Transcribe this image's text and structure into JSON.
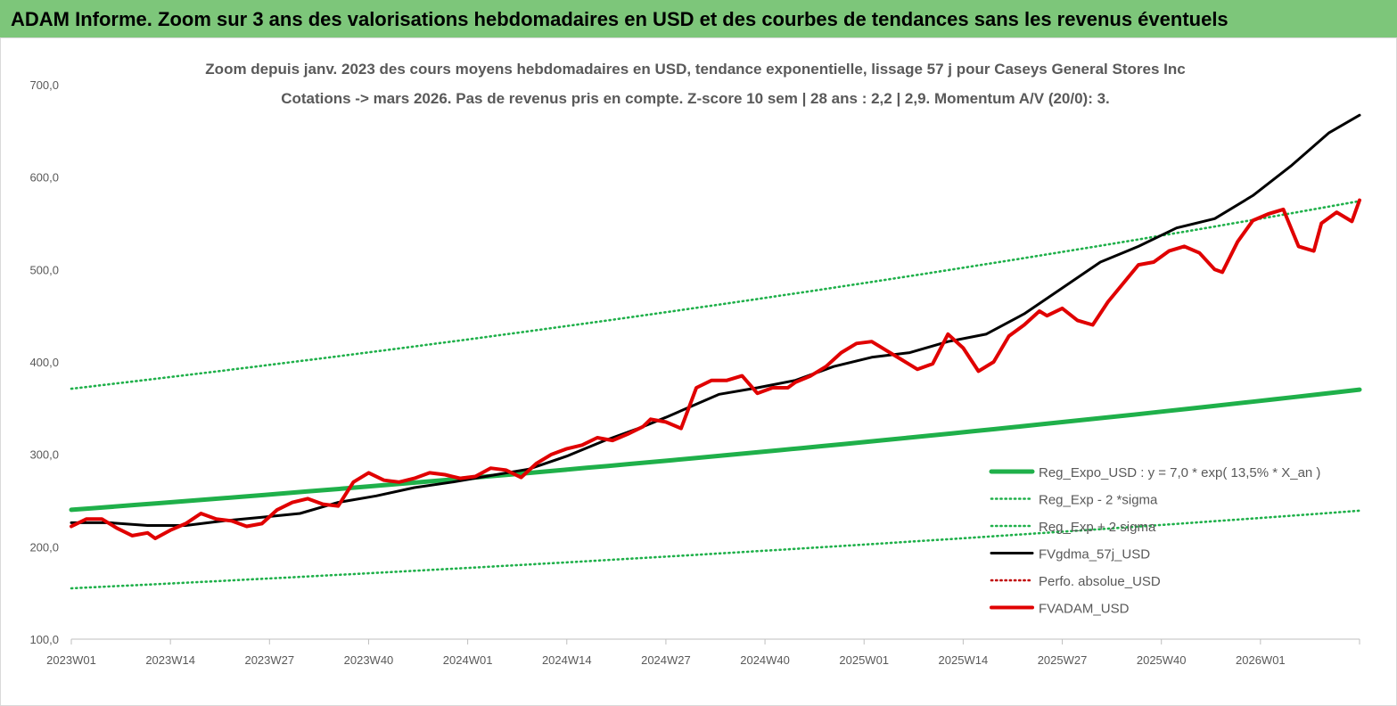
{
  "banner": {
    "title": "ADAM Informe. Zoom sur 3 ans des valorisations hebdomadaires en USD et des courbes de tendances sans les revenus éventuels"
  },
  "colors": {
    "banner_bg": "#7dc67a",
    "trend_green": "#1fb04a",
    "price_red": "#e00000",
    "smooth_black": "#000000",
    "perf_red": "#c00000",
    "text_grey": "#595959"
  },
  "chart_data": {
    "type": "line",
    "title": "Zoom depuis janv. 2023 des cours moyens hebdomadaires en USD, tendance exponentielle, lissage 57 j pour Caseys General Stores Inc",
    "subtitle": "Cotations -> mars 2026. Pas de revenus pris en compte. Z-score 10 sem | 28 ans : 2,2 | 2,9. Momentum A/V (20/0): 3.",
    "ylim": [
      100,
      700
    ],
    "yticks": [
      "100,0",
      "200,0",
      "300,0",
      "400,0",
      "500,0",
      "600,0",
      "700,0"
    ],
    "xticks": [
      "2023W01",
      "2023W14",
      "2023W27",
      "2023W40",
      "2024W01",
      "2024W14",
      "2024W27",
      "2024W40",
      "2025W01",
      "2025W14",
      "2025W27",
      "2025W40",
      "2026W01"
    ],
    "week_range": [
      0,
      169
    ],
    "legend_position": "right",
    "series": [
      {
        "name": "Reg_Expo_USD : y = 7,0 * exp( 13,5% * X_an )",
        "style": "solid-thick",
        "color": "#1fb04a",
        "x": [
          0,
          169
        ],
        "y": [
          240,
          370
        ],
        "growth": "exponential"
      },
      {
        "name": "Reg_Exp - 2 *sigma",
        "style": "dotted",
        "color": "#1fb04a",
        "x": [
          0,
          169
        ],
        "y": [
          155,
          239
        ],
        "growth": "exponential"
      },
      {
        "name": "Reg_Exp + 2 sigma",
        "style": "dotted",
        "color": "#1fb04a",
        "x": [
          0,
          169
        ],
        "y": [
          371,
          574
        ],
        "growth": "exponential"
      },
      {
        "name": "FVgdma_57j_USD",
        "style": "solid",
        "color": "#000000",
        "x": [
          0,
          5,
          10,
          15,
          20,
          25,
          30,
          35,
          40,
          45,
          50,
          55,
          60,
          65,
          70,
          75,
          78,
          85,
          90,
          95,
          100,
          105,
          110,
          115,
          120,
          125,
          130,
          135,
          140,
          145,
          150,
          155,
          160,
          165,
          169
        ],
        "y": [
          226,
          226,
          223,
          223,
          228,
          232,
          236,
          248,
          255,
          264,
          270,
          277,
          284,
          298,
          315,
          330,
          340,
          365,
          372,
          380,
          395,
          405,
          410,
          422,
          430,
          452,
          480,
          508,
          525,
          545,
          555,
          580,
          612,
          648,
          667
        ]
      },
      {
        "name": "Perfo. absolue_USD",
        "style": "dotted",
        "color": "#c00000",
        "x": [],
        "y": []
      },
      {
        "name": "FVADAM_USD",
        "style": "solid-thick",
        "color": "#e00000",
        "x": [
          0,
          2,
          4,
          6,
          8,
          10,
          11,
          13,
          15,
          17,
          19,
          21,
          23,
          25,
          27,
          29,
          31,
          33,
          35,
          37,
          39,
          41,
          43,
          45,
          47,
          49,
          51,
          53,
          55,
          57,
          59,
          61,
          63,
          65,
          67,
          69,
          71,
          73,
          75,
          76,
          78,
          80,
          82,
          84,
          86,
          88,
          90,
          92,
          94,
          95,
          97,
          99,
          101,
          103,
          105,
          107,
          109,
          111,
          113,
          115,
          117,
          119,
          121,
          123,
          125,
          127,
          128,
          130,
          132,
          134,
          136,
          138,
          140,
          142,
          144,
          146,
          148,
          150,
          151,
          153,
          155,
          157,
          159,
          161,
          163,
          164,
          166,
          168,
          169
        ],
        "y": [
          222,
          230,
          230,
          220,
          212,
          215,
          209,
          218,
          225,
          236,
          230,
          228,
          222,
          225,
          240,
          248,
          252,
          246,
          244,
          270,
          280,
          272,
          270,
          274,
          280,
          278,
          274,
          276,
          285,
          283,
          275,
          290,
          300,
          306,
          310,
          318,
          315,
          322,
          330,
          338,
          335,
          328,
          372,
          380,
          380,
          385,
          366,
          372,
          372,
          378,
          385,
          395,
          410,
          420,
          422,
          412,
          402,
          392,
          398,
          430,
          415,
          390,
          400,
          428,
          440,
          455,
          450,
          458,
          445,
          440,
          465,
          485,
          505,
          508,
          520,
          525,
          518,
          500,
          497,
          530,
          553,
          560,
          565,
          525,
          520,
          550,
          562,
          552,
          575
        ]
      }
    ]
  }
}
